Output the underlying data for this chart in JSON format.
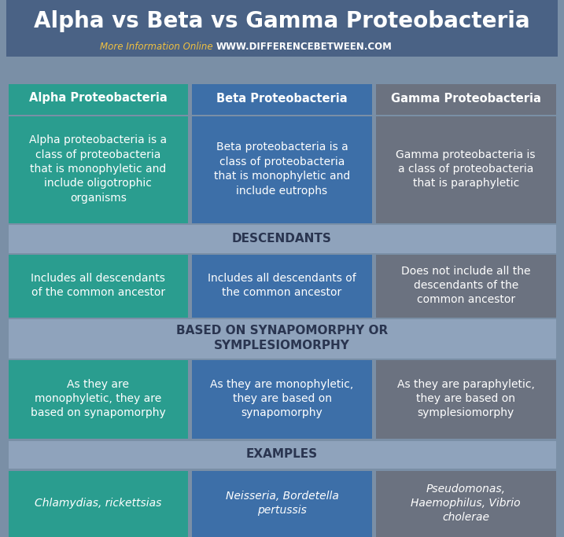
{
  "title": "Alpha vs Beta vs Gamma Proteobacteria",
  "subtitle_plain": "More Information Online ",
  "subtitle_url": "WWW.DIFFERENCEBETWEEN.COM",
  "bg_color": "#7a8fa6",
  "header_bg": "#4a6285",
  "col_colors": [
    "#2a9d8f",
    "#3d6fa8",
    "#6b7280"
  ],
  "row_label_bg": "#8fa3bc",
  "col_headers": [
    "Alpha Proteobacteria",
    "Beta Proteobacteria",
    "Gamma Proteobacteria"
  ],
  "row_labels": [
    "DESCENDANTS",
    "BASED ON SYNAPOMORPHY OR\nSYMPLESIOMORPHY",
    "EXAMPLES"
  ],
  "cells": [
    [
      "Alpha proteobacteria is a\nclass of proteobacteria\nthat is monophyletic and\ninclude oligotrophic\norganisms",
      "Beta proteobacteria is a\nclass of proteobacteria\nthat is monophyletic and\ninclude eutrophs",
      "Gamma proteobacteria is\na class of proteobacteria\nthat is paraphyletic"
    ],
    [
      "Includes all descendants\nof the common ancestor",
      "Includes all descendants of\nthe common ancestor",
      "Does not include all the\ndescendants of the\ncommon ancestor"
    ],
    [
      "As they are\nmonophyletic, they are\nbased on synapomorphy",
      "As they are monophyletic,\nthey are based on\nsynapomorphy",
      "As they are paraphyletic,\nthey are based on\nsymplesiomorphy"
    ],
    [
      "Chlamydias, rickettsias",
      "Neisseria, Bordetella\npertussis",
      "Pseudomonas,\nHaemophilus, Vibrio\ncholerae"
    ]
  ],
  "title_color": "#ffffff",
  "title_fontsize": 20,
  "header_fontsize": 10.5,
  "cell_fontsize": 10,
  "row_label_fontsize": 11,
  "subtitle_color_plain": "#f0c040",
  "subtitle_color_url": "#ffffff",
  "subtitle_fontsize": 8.5,
  "row_label_dark": "#2a3550"
}
